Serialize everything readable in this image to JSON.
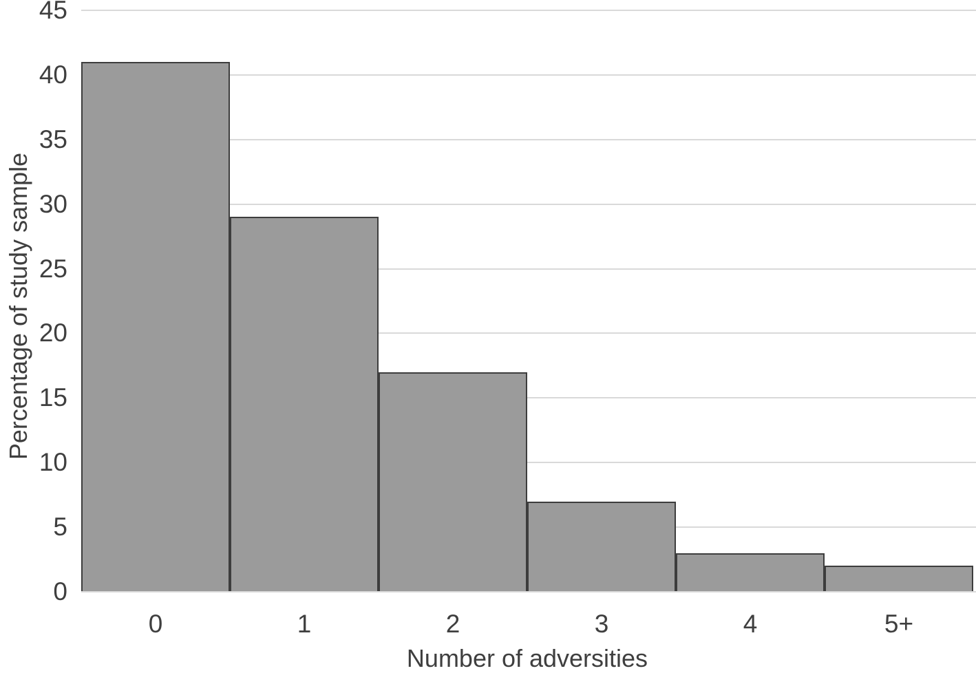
{
  "chart_data": {
    "type": "bar",
    "categories": [
      "0",
      "1",
      "2",
      "3",
      "4",
      "5+"
    ],
    "values": [
      41,
      29,
      17,
      7,
      3,
      2
    ],
    "title": "",
    "xlabel": "Number of adversities",
    "ylabel": "Percentage of study sample",
    "ylim": [
      0,
      45
    ],
    "yticks": [
      0,
      5,
      10,
      15,
      20,
      25,
      30,
      35,
      40,
      45
    ],
    "grid": "horizontal",
    "legend": "none",
    "bar_gap": 0,
    "colors": {
      "bar_fill": "#9b9b9b",
      "bar_border": "#3d3d3d",
      "gridline": "#d9d9d9",
      "text": "#3f3f3f",
      "background": "#ffffff"
    }
  }
}
